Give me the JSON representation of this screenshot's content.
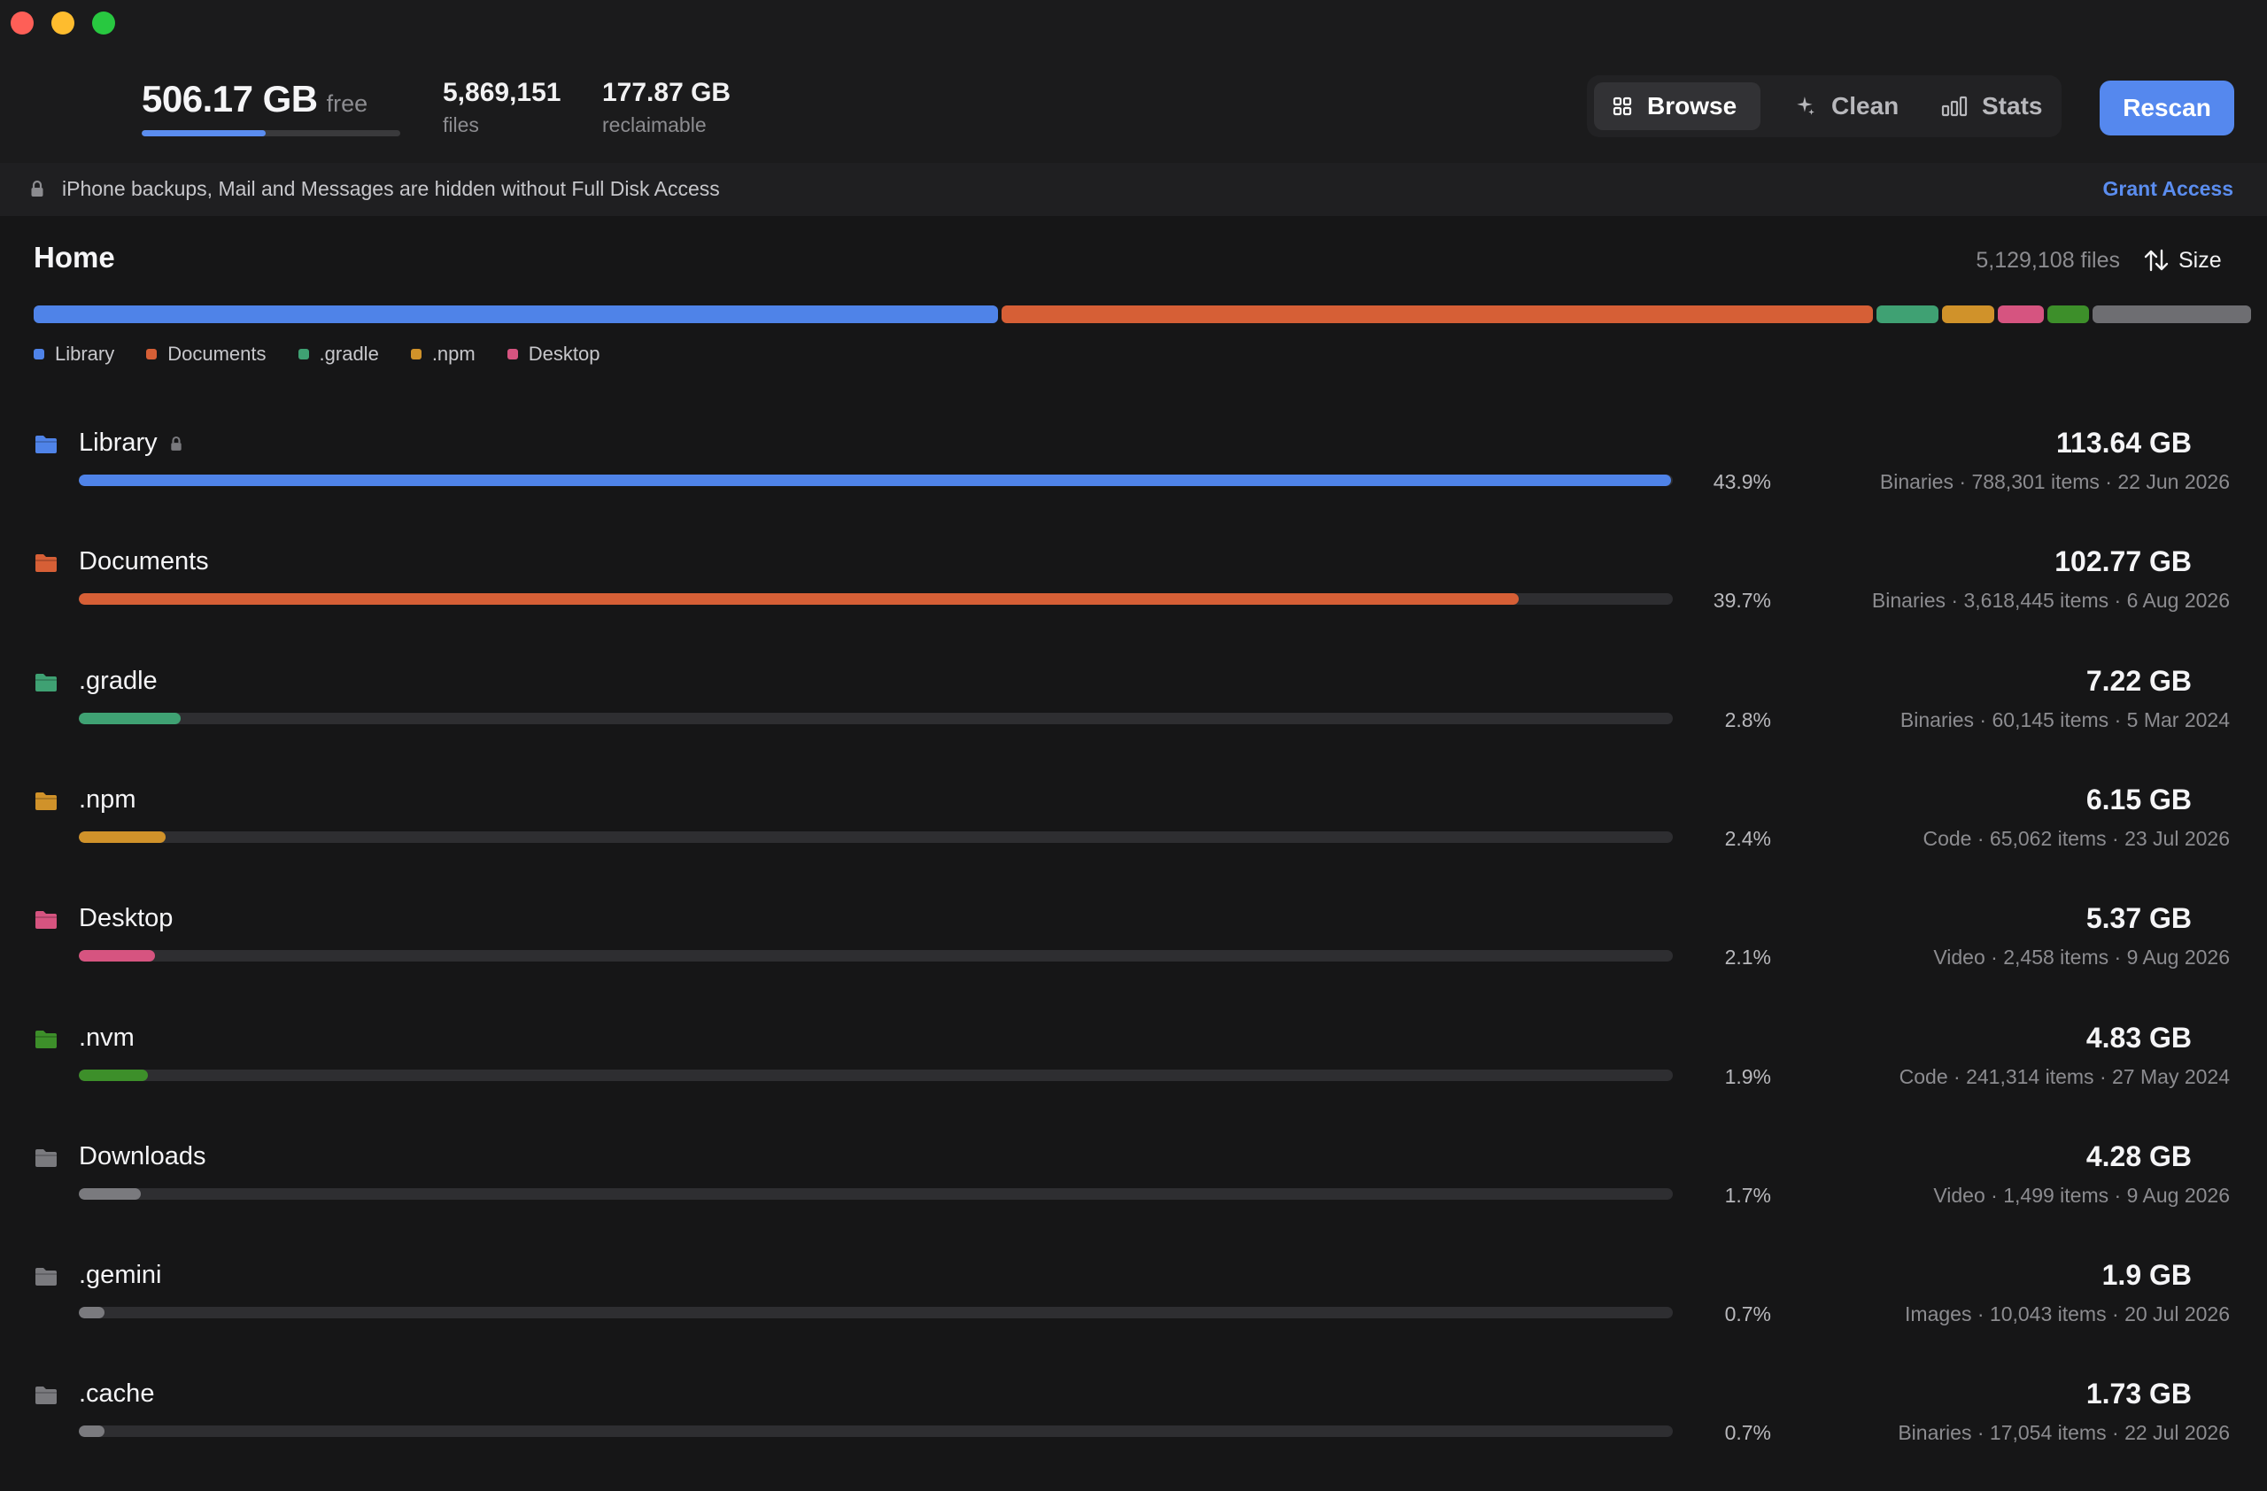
{
  "window": {
    "controls": [
      "close",
      "minimize",
      "zoom"
    ]
  },
  "header": {
    "free_value": "506.17 GB",
    "free_unit": "free",
    "free_bar_fraction": 0.48,
    "files_value": "5,869,151",
    "files_label": "files",
    "reclaimable_value": "177.87 GB",
    "reclaimable_label": "reclaimable",
    "tabs": [
      {
        "label": "Browse",
        "icon": "grid-icon",
        "active": true
      },
      {
        "label": "Clean",
        "icon": "sparkle-icon",
        "active": false
      },
      {
        "label": "Stats",
        "icon": "bar-chart-icon",
        "active": false
      }
    ],
    "rescan_label": "Rescan"
  },
  "notice": {
    "icon": "lock-icon",
    "text": "iPhone backups, Mail and Messages are hidden without Full Disk Access",
    "action_label": "Grant Access"
  },
  "home": {
    "title": "Home",
    "file_count": "5,129,108 files",
    "sort_label": "Size",
    "sort_icon": "sort-arrows-icon",
    "stack_other_color": "#6e6e72",
    "legend": [
      {
        "label": "Library",
        "color": "#4f83e8"
      },
      {
        "label": "Documents",
        "color": "#d65f36"
      },
      {
        "label": ".gradle",
        "color": "#3fa173"
      },
      {
        "label": ".npm",
        "color": "#d0922a"
      },
      {
        "label": "Desktop",
        "color": "#d65480"
      }
    ]
  },
  "folders": [
    {
      "name": "Library",
      "locked": true,
      "size": "113.64 GB",
      "percent": "43.9%",
      "fraction": 0.439,
      "kind": "Binaries",
      "items": "788,301 items",
      "date": "22 Jun 2026",
      "color": "#4f83e8"
    },
    {
      "name": "Documents",
      "locked": false,
      "size": "102.77 GB",
      "percent": "39.7%",
      "fraction": 0.397,
      "kind": "Binaries",
      "items": "3,618,445 items",
      "date": "6 Aug 2026",
      "color": "#d65f36"
    },
    {
      "name": ".gradle",
      "locked": false,
      "size": "7.22 GB",
      "percent": "2.8%",
      "fraction": 0.028,
      "kind": "Binaries",
      "items": "60,145 items",
      "date": "5 Mar 2024",
      "color": "#3fa173"
    },
    {
      "name": ".npm",
      "locked": false,
      "size": "6.15 GB",
      "percent": "2.4%",
      "fraction": 0.024,
      "kind": "Code",
      "items": "65,062 items",
      "date": "23 Jul 2026",
      "color": "#d0922a"
    },
    {
      "name": "Desktop",
      "locked": false,
      "size": "5.37 GB",
      "percent": "2.1%",
      "fraction": 0.021,
      "kind": "Video",
      "items": "2,458 items",
      "date": "9 Aug 2026",
      "color": "#d65480"
    },
    {
      "name": ".nvm",
      "locked": false,
      "size": "4.83 GB",
      "percent": "1.9%",
      "fraction": 0.019,
      "kind": "Code",
      "items": "241,314 items",
      "date": "27 May 2024",
      "color": "#3d8f2a"
    },
    {
      "name": "Downloads",
      "locked": false,
      "size": "4.28 GB",
      "percent": "1.7%",
      "fraction": 0.017,
      "kind": "Video",
      "items": "1,499 items",
      "date": "9 Aug 2026",
      "color": "#7a7a7e"
    },
    {
      "name": ".gemini",
      "locked": false,
      "size": "1.9 GB",
      "percent": "0.7%",
      "fraction": 0.007,
      "kind": "Images",
      "items": "10,043 items",
      "date": "20 Jul 2026",
      "color": "#7a7a7e"
    },
    {
      "name": ".cache",
      "locked": false,
      "size": "1.73 GB",
      "percent": "0.7%",
      "fraction": 0.007,
      "kind": "Binaries",
      "items": "17,054 items",
      "date": "22 Jul 2026",
      "color": "#7a7a7e"
    }
  ]
}
